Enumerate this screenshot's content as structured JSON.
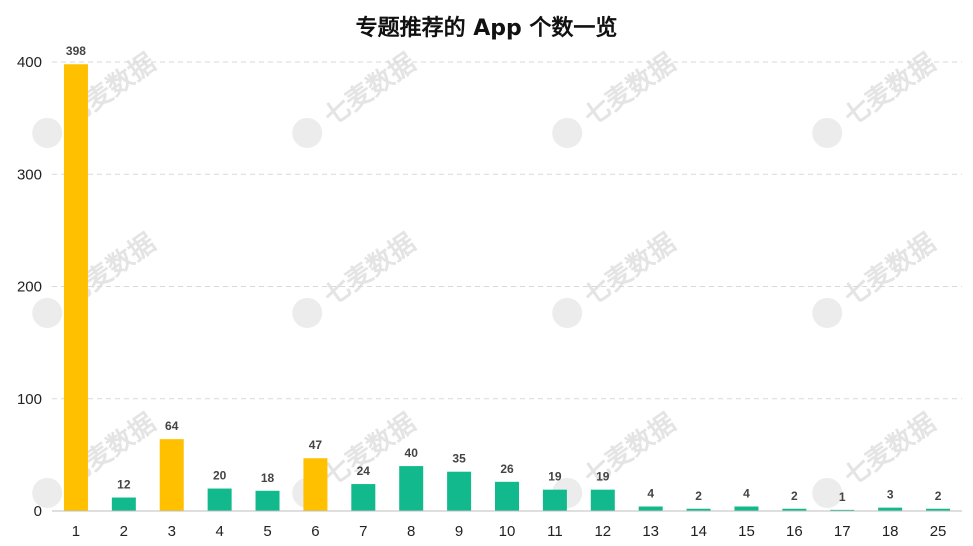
{
  "chart_data": {
    "type": "bar",
    "title": "专题推荐的 App 个数一览",
    "xlabel": "",
    "ylabel": "",
    "categories": [
      "1",
      "2",
      "3",
      "4",
      "5",
      "6",
      "7",
      "8",
      "9",
      "10",
      "11",
      "12",
      "13",
      "14",
      "15",
      "16",
      "17",
      "18",
      "25"
    ],
    "values": [
      398,
      12,
      64,
      20,
      18,
      47,
      24,
      40,
      35,
      26,
      19,
      19,
      4,
      2,
      4,
      2,
      1,
      3,
      2
    ],
    "highlighted_categories": [
      "1",
      "3",
      "6"
    ],
    "ylim": [
      0,
      400
    ],
    "yticks": [
      0,
      100,
      200,
      300,
      400
    ],
    "grid": true,
    "colors": {
      "highlight": "#FFC000",
      "normal": "#12B98C",
      "grid": "#d9d9d9"
    }
  },
  "watermark": {
    "text": "七麦数据",
    "repeat": 12
  }
}
